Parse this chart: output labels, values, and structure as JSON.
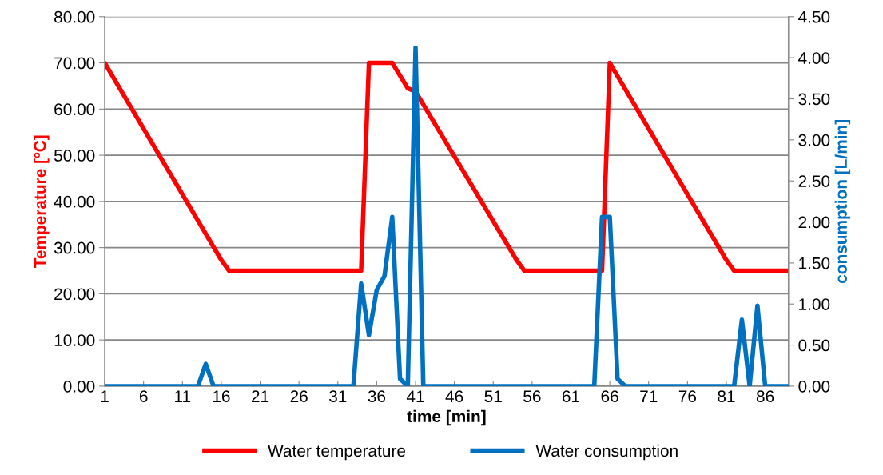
{
  "chart_data": {
    "type": "line",
    "xlabel": "time [min]",
    "ylabel": "Temperature [ºC]",
    "y2label": "consumption [L/min]",
    "xlim": [
      1,
      89
    ],
    "xticks": [
      1,
      6,
      11,
      16,
      21,
      26,
      31,
      36,
      41,
      46,
      51,
      56,
      61,
      66,
      71,
      76,
      81,
      86
    ],
    "ylim": [
      0,
      80
    ],
    "yticks": [
      {
        "value": 0,
        "label": "0.00"
      },
      {
        "value": 10,
        "label": "10.00"
      },
      {
        "value": 20,
        "label": "20.00"
      },
      {
        "value": 30,
        "label": "30.00"
      },
      {
        "value": 40,
        "label": "40.00"
      },
      {
        "value": 50,
        "label": "50.00"
      },
      {
        "value": 60,
        "label": "60.00"
      },
      {
        "value": 70,
        "label": "70.00"
      },
      {
        "value": 80,
        "label": "80.00"
      }
    ],
    "y2lim": [
      0,
      4.5
    ],
    "y2ticks": [
      {
        "value": 0,
        "label": "0.00"
      },
      {
        "value": 0.5,
        "label": "0.50"
      },
      {
        "value": 1,
        "label": "1.00"
      },
      {
        "value": 1.5,
        "label": "1.50"
      },
      {
        "value": 2,
        "label": "2.00"
      },
      {
        "value": 2.5,
        "label": "2.50"
      },
      {
        "value": 3,
        "label": "3.00"
      },
      {
        "value": 3.5,
        "label": "3.50"
      },
      {
        "value": 4,
        "label": "4.00"
      },
      {
        "value": 4.5,
        "label": "4.50"
      }
    ],
    "grid": "y",
    "legend": "bottom",
    "marker": "none",
    "line_style": "solid",
    "series": [
      {
        "name": "Water temperature",
        "color": "#ff0000",
        "x": [
          1,
          16,
          17,
          34,
          35,
          38,
          40,
          41,
          54,
          55,
          65,
          66,
          81,
          82,
          89
        ],
        "values": [
          70,
          27.3,
          25,
          25,
          70,
          70,
          64.5,
          63.8,
          27.3,
          25,
          25,
          70,
          27.3,
          25,
          25
        ]
      },
      {
        "name": "Water consumption",
        "color": "#0070c0",
        "axis": "y2",
        "x": [
          1,
          13,
          14,
          15,
          33,
          34,
          35,
          36,
          37,
          38,
          39,
          40,
          41,
          42,
          64,
          65,
          66,
          67,
          68,
          82,
          83,
          84,
          85,
          86,
          89
        ],
        "values": [
          0,
          0,
          0.27,
          0,
          0,
          1.25,
          0.62,
          1.17,
          1.34,
          2.06,
          0.09,
          0,
          4.12,
          0,
          0,
          2.06,
          2.06,
          0.09,
          0,
          0,
          0.81,
          0,
          0.98,
          0,
          0
        ]
      }
    ]
  }
}
